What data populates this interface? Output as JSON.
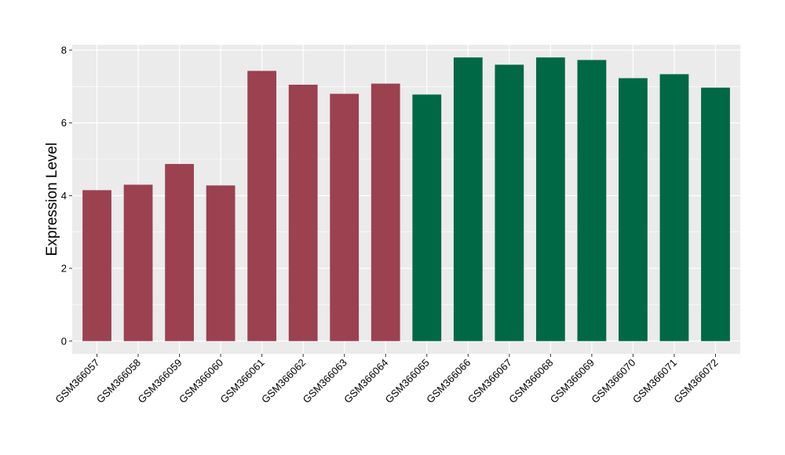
{
  "chart_data": {
    "type": "bar",
    "title": "",
    "xlabel": "",
    "ylabel": "Expression Level",
    "ylim": [
      -0.35,
      8.15
    ],
    "yticks": [
      0,
      2,
      4,
      6,
      8
    ],
    "grid": true,
    "legend": "none",
    "panel_background": "#EBEBEB",
    "gridline_color": "#FFFFFF",
    "categories": [
      "GSM366057",
      "GSM366058",
      "GSM366059",
      "GSM366060",
      "GSM366061",
      "GSM366062",
      "GSM366063",
      "GSM366064",
      "GSM366065",
      "GSM366066",
      "GSM366067",
      "GSM366068",
      "GSM366069",
      "GSM366070",
      "GSM366071",
      "GSM366072"
    ],
    "values": [
      4.15,
      4.3,
      4.87,
      4.28,
      7.43,
      7.05,
      6.8,
      7.08,
      6.78,
      7.8,
      7.6,
      7.8,
      7.73,
      7.23,
      7.34,
      6.97
    ],
    "bar_colors": [
      "#9B4150",
      "#9B4150",
      "#9B4150",
      "#9B4150",
      "#9B4150",
      "#9B4150",
      "#9B4150",
      "#9B4150",
      "#006845",
      "#006845",
      "#006845",
      "#006845",
      "#006845",
      "#006845",
      "#006845",
      "#006845"
    ]
  }
}
